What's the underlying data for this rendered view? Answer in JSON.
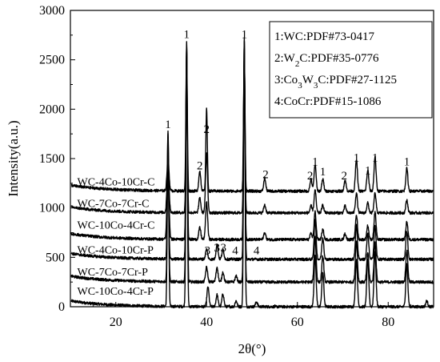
{
  "chart_data": {
    "type": "line",
    "xlabel": "2θ(°)",
    "ylabel": "Intensity(a.u.)",
    "xlim": [
      10,
      90
    ],
    "ylim": [
      0,
      3000
    ],
    "x_ticks": [
      20,
      40,
      60,
      80
    ],
    "y_ticks": [
      0,
      500,
      1000,
      1500,
      2000,
      2500,
      3000
    ],
    "series": [
      {
        "name": "WC-10Co-4Cr-P",
        "baseline": 0,
        "peaks": [
          {
            "x": 31.5,
            "h": 1780
          },
          {
            "x": 35.6,
            "h": 2680
          },
          {
            "x": 40.3,
            "h": 200
          },
          {
            "x": 42.3,
            "h": 120
          },
          {
            "x": 43.6,
            "h": 130
          },
          {
            "x": 46.5,
            "h": 60
          },
          {
            "x": 48.3,
            "h": 2720
          },
          {
            "x": 51.0,
            "h": 50
          },
          {
            "x": 63.9,
            "h": 510
          },
          {
            "x": 65.6,
            "h": 350
          },
          {
            "x": 73.0,
            "h": 480
          },
          {
            "x": 75.5,
            "h": 480
          },
          {
            "x": 77.1,
            "h": 560
          },
          {
            "x": 84.1,
            "h": 430
          },
          {
            "x": 88.5,
            "h": 60
          }
        ]
      },
      {
        "name": "WC-7Co-7Cr-P",
        "baseline": 250,
        "peaks": [
          {
            "x": 31.5,
            "h": 1500
          },
          {
            "x": 35.6,
            "h": 2400
          },
          {
            "x": 40.0,
            "h": 150
          },
          {
            "x": 42.3,
            "h": 150
          },
          {
            "x": 43.6,
            "h": 100
          },
          {
            "x": 46.5,
            "h": 60
          },
          {
            "x": 48.3,
            "h": 2450
          },
          {
            "x": 63.9,
            "h": 460
          },
          {
            "x": 65.6,
            "h": 260
          },
          {
            "x": 73.0,
            "h": 420
          },
          {
            "x": 75.5,
            "h": 300
          },
          {
            "x": 77.1,
            "h": 400
          },
          {
            "x": 84.1,
            "h": 320
          }
        ]
      },
      {
        "name": "WC-4Co-10Cr-P",
        "baseline": 480,
        "peaks": [
          {
            "x": 31.5,
            "h": 1230
          },
          {
            "x": 35.6,
            "h": 2150
          },
          {
            "x": 40.0,
            "h": 100
          },
          {
            "x": 42.3,
            "h": 150
          },
          {
            "x": 43.6,
            "h": 100
          },
          {
            "x": 48.3,
            "h": 2200
          },
          {
            "x": 63.9,
            "h": 400
          },
          {
            "x": 65.6,
            "h": 220
          },
          {
            "x": 73.0,
            "h": 350
          },
          {
            "x": 75.5,
            "h": 260
          },
          {
            "x": 77.1,
            "h": 340
          },
          {
            "x": 84.1,
            "h": 280
          }
        ]
      },
      {
        "name": "WC-10Co-4Cr-C",
        "baseline": 680,
        "peaks": [
          {
            "x": 31.5,
            "h": 700
          },
          {
            "x": 35.6,
            "h": 1700
          },
          {
            "x": 38.5,
            "h": 120
          },
          {
            "x": 40.0,
            "h": 380
          },
          {
            "x": 48.3,
            "h": 1850
          },
          {
            "x": 52.8,
            "h": 70
          },
          {
            "x": 63.0,
            "h": 60
          },
          {
            "x": 63.9,
            "h": 280
          },
          {
            "x": 65.6,
            "h": 100
          },
          {
            "x": 70.5,
            "h": 60
          },
          {
            "x": 73.0,
            "h": 250
          },
          {
            "x": 75.5,
            "h": 140
          },
          {
            "x": 77.1,
            "h": 280
          },
          {
            "x": 84.1,
            "h": 180
          }
        ]
      },
      {
        "name": "WC-7Co-7Cr-C",
        "baseline": 950,
        "peaks": [
          {
            "x": 31.5,
            "h": 500
          },
          {
            "x": 35.6,
            "h": 1450
          },
          {
            "x": 38.5,
            "h": 150
          },
          {
            "x": 40.0,
            "h": 600
          },
          {
            "x": 48.3,
            "h": 1600
          },
          {
            "x": 52.8,
            "h": 80
          },
          {
            "x": 63.0,
            "h": 70
          },
          {
            "x": 63.9,
            "h": 230
          },
          {
            "x": 65.6,
            "h": 80
          },
          {
            "x": 70.5,
            "h": 70
          },
          {
            "x": 73.0,
            "h": 200
          },
          {
            "x": 75.5,
            "h": 100
          },
          {
            "x": 77.1,
            "h": 200
          },
          {
            "x": 84.1,
            "h": 130
          }
        ]
      },
      {
        "name": "WC-4Co-10Cr-C",
        "baseline": 1170,
        "peaks": [
          {
            "x": 31.5,
            "h": 330
          },
          {
            "x": 35.6,
            "h": 1400
          },
          {
            "x": 38.5,
            "h": 200
          },
          {
            "x": 40.0,
            "h": 850
          },
          {
            "x": 48.3,
            "h": 1380
          },
          {
            "x": 52.8,
            "h": 130
          },
          {
            "x": 63.0,
            "h": 120
          },
          {
            "x": 63.9,
            "h": 270
          },
          {
            "x": 65.6,
            "h": 120
          },
          {
            "x": 70.5,
            "h": 110
          },
          {
            "x": 73.0,
            "h": 320
          },
          {
            "x": 75.5,
            "h": 210
          },
          {
            "x": 77.1,
            "h": 350
          },
          {
            "x": 84.1,
            "h": 230
          }
        ]
      }
    ],
    "series_labels": [
      {
        "name": "WC-4Co-10Cr-C",
        "x": 11.5,
        "y": 1230
      },
      {
        "name": "WC-7Co-7Cr-C",
        "x": 11.5,
        "y": 1010
      },
      {
        "name": "WC-10Co-4Cr-C",
        "x": 11.5,
        "y": 790
      },
      {
        "name": "WC-4Co-10Cr-P",
        "x": 11.5,
        "y": 540
      },
      {
        "name": "WC-7Co-7Cr-P",
        "x": 11.5,
        "y": 315
      },
      {
        "name": "WC-10Co-4Cr-P",
        "x": 11.5,
        "y": 120
      }
    ],
    "peak_annotations": [
      {
        "text": "1",
        "x": 31.5,
        "y": 1810
      },
      {
        "text": "1",
        "x": 35.6,
        "y": 2720
      },
      {
        "text": "1",
        "x": 48.3,
        "y": 2720
      },
      {
        "text": "2",
        "x": 40.0,
        "y": 1760
      },
      {
        "text": "2",
        "x": 38.5,
        "y": 1390
      },
      {
        "text": "2",
        "x": 53.0,
        "y": 1300
      },
      {
        "text": "2",
        "x": 62.8,
        "y": 1290
      },
      {
        "text": "2",
        "x": 70.3,
        "y": 1290
      },
      {
        "text": "1",
        "x": 63.9,
        "y": 1430
      },
      {
        "text": "1",
        "x": 65.6,
        "y": 1330
      },
      {
        "text": "1",
        "x": 73.0,
        "y": 1470
      },
      {
        "text": "1",
        "x": 75.5,
        "y": 1340
      },
      {
        "text": "1",
        "x": 77.1,
        "y": 1470
      },
      {
        "text": "1",
        "x": 84.1,
        "y": 1430
      },
      {
        "text": "3",
        "x": 40.2,
        "y": 530
      },
      {
        "text": "3",
        "x": 42.3,
        "y": 560
      },
      {
        "text": "3",
        "x": 43.7,
        "y": 560
      },
      {
        "text": "4",
        "x": 46.3,
        "y": 530
      },
      {
        "text": "4",
        "x": 51.0,
        "y": 530
      }
    ],
    "legend": {
      "position": "top-right",
      "entries": [
        {
          "prefix": "1:WC:PDF#73-0417",
          "base": "",
          "sub": "",
          "rest": ""
        },
        {
          "prefix": "2:W",
          "base": "",
          "sub": "2",
          "rest": "C:PDF#35-0776"
        },
        {
          "prefix": "3:Co",
          "base": "",
          "sub": "3",
          "rest": "W",
          "sub2": "3",
          "rest2": "C:PDF#27-1125"
        },
        {
          "prefix": "4:CoCr:PDF#15-1086",
          "base": "",
          "sub": "",
          "rest": ""
        }
      ]
    }
  }
}
